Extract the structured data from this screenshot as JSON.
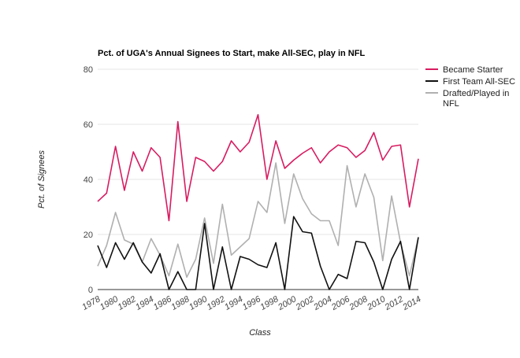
{
  "chart_data": {
    "type": "line",
    "title": "Pct. of UGA's Annual Signees to Start, make All-SEC, play in NFL",
    "xlabel": "Class",
    "ylabel": "Pct. of Signees",
    "ylim": [
      0,
      80
    ],
    "yticks": [
      "0",
      "20",
      "40",
      "60",
      "80"
    ],
    "x_tick_labels": [
      "1978",
      "1980",
      "1982",
      "1984",
      "1986",
      "1988",
      "1990",
      "1992",
      "1994",
      "1996",
      "1998",
      "2000",
      "2002",
      "2004",
      "2006",
      "2008",
      "2010",
      "2012",
      "2014"
    ],
    "x": [
      1978,
      1979,
      1980,
      1981,
      1982,
      1983,
      1984,
      1985,
      1986,
      1987,
      1988,
      1989,
      1990,
      1991,
      1992,
      1993,
      1994,
      1995,
      1996,
      1997,
      1998,
      1999,
      2000,
      2001,
      2002,
      2003,
      2004,
      2005,
      2006,
      2007,
      2008,
      2009,
      2010,
      2011,
      2012,
      2013,
      2014
    ],
    "grid": true,
    "legend_position": "right",
    "series": [
      {
        "name": "Became Starter",
        "color": "#d81b60",
        "values": [
          32,
          35,
          52,
          36,
          50,
          43,
          51.5,
          48,
          25,
          61,
          32,
          48,
          46.5,
          43,
          46.5,
          54,
          50,
          53.5,
          63.5,
          40,
          54,
          44,
          47,
          49.5,
          51.5,
          46,
          50,
          52.5,
          51.5,
          48,
          50.5,
          57,
          47,
          52,
          52.5,
          30,
          47.5
        ]
      },
      {
        "name": "First Team All-SEC",
        "color": "#111111",
        "values": [
          16,
          8,
          17,
          11,
          17,
          10,
          6,
          13,
          0,
          6.5,
          0,
          0,
          24,
          0,
          15.5,
          0,
          12,
          11,
          9,
          8,
          17,
          0,
          26.5,
          21,
          20.5,
          8.5,
          0,
          5.5,
          4,
          17.5,
          17,
          10,
          0,
          11,
          17.5,
          0,
          19
        ]
      },
      {
        "name": "Drafted/Played in NFL",
        "color": "#b0b0b0",
        "values": [
          8.5,
          16,
          28,
          18,
          16.5,
          10,
          18.5,
          12.5,
          5,
          16.5,
          4.5,
          11,
          26,
          9.5,
          31,
          12.5,
          15.5,
          18.5,
          32,
          28,
          46,
          24,
          42,
          33,
          27.5,
          25,
          25,
          16,
          45,
          30,
          42,
          33.5,
          10.5,
          34,
          17,
          5,
          19
        ]
      }
    ]
  }
}
